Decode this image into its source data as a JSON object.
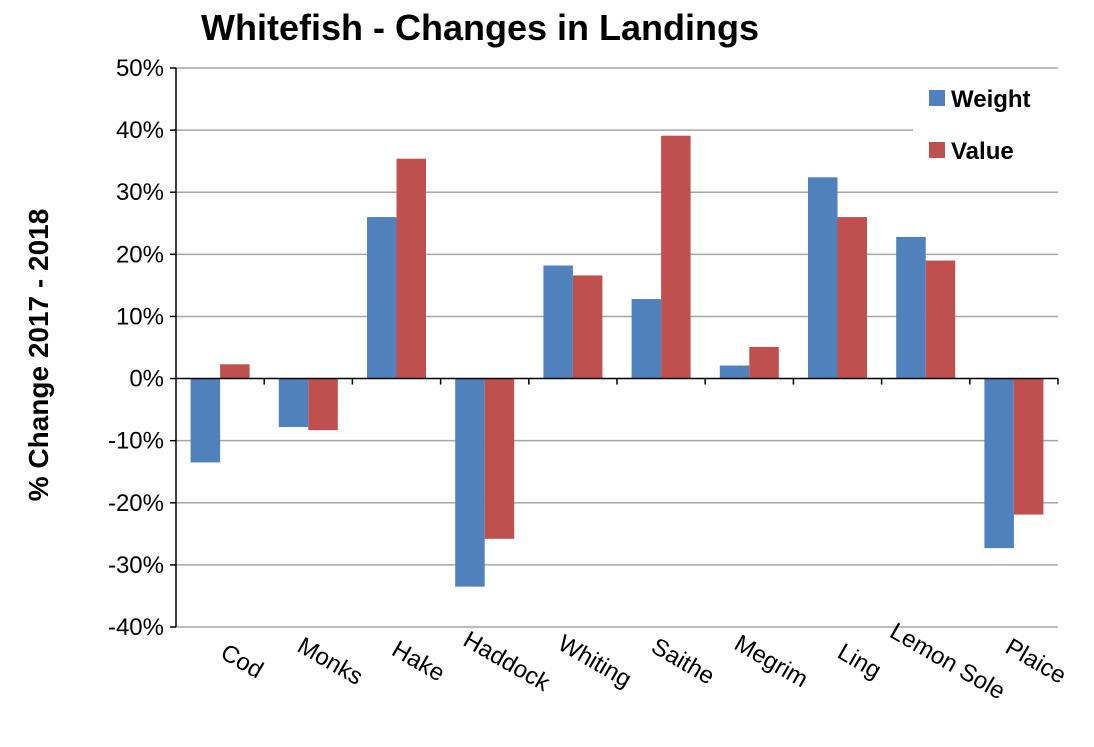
{
  "colors": {
    "weight": "#4F81BD",
    "value": "#C0504D",
    "grid": "#A6A6A6",
    "axis": "#000000"
  },
  "chart_data": {
    "type": "bar",
    "title": "Whitefish - Changes in Landings",
    "xlabel": "",
    "ylabel": "% Change  2017 - 2018",
    "ylim": [
      -40,
      50
    ],
    "ytick_step": 10,
    "ytick_labels": [
      "-40%",
      "-30%",
      "-20%",
      "-10%",
      "0%",
      "10%",
      "20%",
      "30%",
      "40%",
      "50%"
    ],
    "grid": true,
    "legend_position": "top-right",
    "categories": [
      "Cod",
      "Monks",
      "Hake",
      "Haddock",
      "Whiting",
      "Saithe",
      "Megrim",
      "Ling",
      "Lemon Sole",
      "Plaice"
    ],
    "series": [
      {
        "name": "Weight",
        "values": [
          -13.5,
          -7.8,
          26,
          -33.5,
          18.2,
          12.8,
          2.1,
          32.4,
          22.8,
          -27.3
        ]
      },
      {
        "name": "Value",
        "values": [
          2.3,
          -8.3,
          35.4,
          -25.8,
          16.6,
          39.1,
          5.1,
          26,
          19,
          -21.9
        ]
      }
    ]
  }
}
